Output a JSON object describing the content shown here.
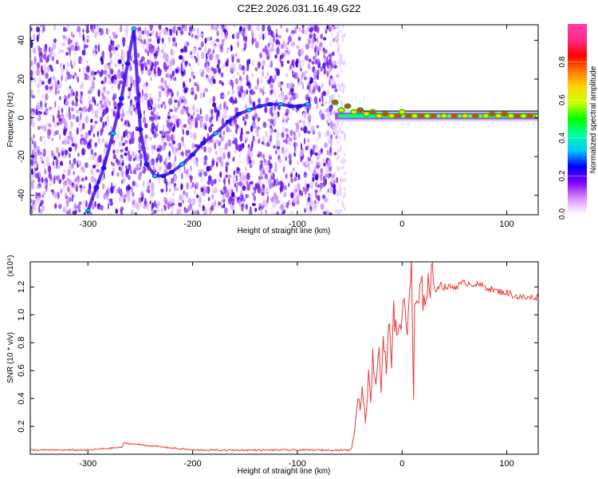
{
  "title": "C2E2.2026.031.16.49.G22",
  "chart_data": [
    {
      "type": "heatmap",
      "xlabel": "Height of straight line (km)",
      "ylabel": "Frequency (Hz)",
      "xlim": [
        -355,
        130
      ],
      "ylim": [
        -50,
        48
      ],
      "xticks": [
        -300,
        -200,
        -100,
        0,
        100
      ],
      "yticks": [
        -40,
        -20,
        0,
        20,
        40
      ],
      "noise_region_x": [
        -355,
        -62
      ],
      "trace": {
        "x": [
          -300,
          -292,
          -285,
          -276,
          -268,
          -262,
          -256,
          -250,
          -244,
          -236,
          -228,
          -220,
          -210,
          -200,
          -190,
          -178,
          -166,
          -156,
          -146,
          -136,
          -126,
          -116,
          -106,
          -98,
          -90
        ],
        "y": [
          -48,
          -36,
          -26,
          -8,
          10,
          28,
          46,
          -6,
          -24,
          -30,
          -30,
          -28,
          -24,
          -19,
          -13,
          -8,
          -2,
          2,
          4,
          6,
          7,
          7,
          6,
          6,
          7
        ]
      },
      "carrier": {
        "x": [
          -64,
          -58,
          -52,
          -46,
          -40,
          -34,
          -28,
          -22,
          -16,
          -10,
          -4,
          0,
          6,
          12,
          18,
          24,
          30,
          40,
          50,
          60,
          70,
          80,
          86,
          92,
          98,
          104,
          110,
          116,
          122,
          130
        ],
        "y": [
          8,
          4,
          6,
          3,
          4,
          2,
          3,
          1,
          2,
          1,
          1,
          3,
          1,
          1,
          1,
          1,
          1,
          1,
          1,
          1,
          1,
          1,
          2,
          1,
          2,
          1,
          1,
          1,
          1,
          1
        ]
      },
      "colorbar": {
        "label": "Normalized spectral amplitude",
        "ticks": [
          "0.0",
          "0.2",
          "0.4",
          "0.6",
          "0.8"
        ],
        "range": [
          0,
          1
        ],
        "colors": [
          "#ffffff",
          "#d78cff",
          "#8000ff",
          "#0000ff",
          "#00c8ff",
          "#00ffa0",
          "#00ff00",
          "#c8ff00",
          "#ffd700",
          "#ff7a00",
          "#ff0000",
          "#ff2a8a",
          "#ff3caa"
        ]
      }
    },
    {
      "type": "line",
      "xlabel": "Height of straight line (km)",
      "ylabel": "SNR (10 * v/v)",
      "multiplier": "(x10⁴)",
      "xlim": [
        -355,
        130
      ],
      "ylim": [
        0,
        1.38
      ],
      "xticks": [
        -300,
        -200,
        -100,
        0,
        100
      ],
      "yticks": [
        "0.2",
        "0.4",
        "0.6",
        "0.8",
        "1.0",
        "1.2"
      ],
      "ytick_values": [
        0.2,
        0.4,
        0.6,
        0.8,
        1.0,
        1.2
      ],
      "line_color": "#e83a3a",
      "series": [
        {
          "name": "SNR",
          "x": [
            -355,
            -300,
            -268,
            -265,
            -200,
            -100,
            -50,
            -48,
            -45,
            -42,
            -40,
            -38,
            -35,
            -32,
            -30,
            -28,
            -25,
            -22,
            -20,
            -18,
            -15,
            -12,
            -10,
            -8,
            -5,
            -2,
            0,
            2,
            5,
            7,
            9,
            11,
            12,
            14,
            16,
            18,
            20,
            24,
            28,
            32,
            36,
            40,
            50,
            60,
            70,
            80,
            90,
            100,
            110,
            120,
            130
          ],
          "y": [
            0.03,
            0.03,
            0.05,
            0.08,
            0.03,
            0.03,
            0.03,
            0.05,
            0.18,
            0.45,
            0.3,
            0.5,
            0.25,
            0.55,
            0.4,
            0.7,
            0.5,
            0.8,
            0.45,
            0.85,
            0.6,
            0.95,
            0.7,
            1.0,
            0.8,
            1.05,
            0.9,
            1.1,
            0.85,
            1.2,
            1.35,
            0.36,
            1.0,
            1.1,
            1.05,
            1.15,
            1.15,
            1.2,
            1.25,
            1.18,
            1.22,
            1.2,
            1.2,
            1.23,
            1.22,
            1.2,
            1.17,
            1.16,
            1.13,
            1.12,
            1.13
          ]
        }
      ]
    }
  ]
}
